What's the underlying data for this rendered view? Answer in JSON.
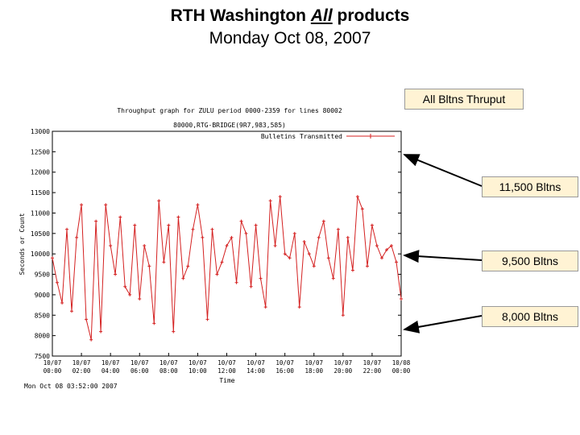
{
  "slide": {
    "title_prefix": "RTH Washington ",
    "title_emph": "All",
    "title_suffix": " products",
    "subtitle": "Monday Oct 08, 2007"
  },
  "callouts": {
    "header": "All Bltns Thruput",
    "labels": [
      "11,500 Bltns",
      "9,500 Bltns",
      "8,000 Bltns"
    ],
    "box_color": "#fff3d4"
  },
  "chart_data": {
    "type": "line",
    "title": "Throughput graph for ZULU period 0000-2359 for lines 80002",
    "subtitle": "80000,RTG-BRIDGE(9R7,983,585)",
    "xlabel": "Time",
    "ylabel": "Seconds or Count",
    "legend": "Bulletins Transmitted",
    "legend_position": "top-right",
    "footer": "Mon Oct 08 03:52:00 2007",
    "series_color": "#d42020",
    "ylim": [
      7500,
      13000
    ],
    "y_ticks": [
      "13000",
      "12500",
      "12000",
      "11500",
      "11000",
      "10500",
      "10000",
      "9500",
      "9000",
      "8500",
      "8000",
      "7500"
    ],
    "y_tick_values": [
      13000,
      12500,
      12000,
      11500,
      11000,
      10500,
      10000,
      9500,
      9000,
      8500,
      8000,
      7500
    ],
    "x_ticks": [
      [
        "10/07",
        "00:00"
      ],
      [
        "10/07",
        "02:00"
      ],
      [
        "10/07",
        "04:00"
      ],
      [
        "10/07",
        "06:00"
      ],
      [
        "10/07",
        "08:00"
      ],
      [
        "10/07",
        "10:00"
      ],
      [
        "10/07",
        "12:00"
      ],
      [
        "10/07",
        "14:00"
      ],
      [
        "10/07",
        "16:00"
      ],
      [
        "10/07",
        "18:00"
      ],
      [
        "10/07",
        "20:00"
      ],
      [
        "10/07",
        "22:00"
      ],
      [
        "10/08",
        "00:00"
      ]
    ],
    "x_hours": [
      0,
      0.33,
      0.67,
      1.0,
      1.33,
      1.67,
      2.0,
      2.33,
      2.67,
      3.0,
      3.33,
      3.67,
      4.0,
      4.33,
      4.67,
      5.0,
      5.33,
      5.67,
      6.0,
      6.33,
      6.67,
      7.0,
      7.33,
      7.67,
      8.0,
      8.33,
      8.67,
      9.0,
      9.33,
      9.67,
      10.0,
      10.33,
      10.67,
      11.0,
      11.33,
      11.67,
      12.0,
      12.33,
      12.67,
      13.0,
      13.33,
      13.67,
      14.0,
      14.33,
      14.67,
      15.0,
      15.33,
      15.67,
      16.0,
      16.33,
      16.67,
      17.0,
      17.33,
      17.67,
      18.0,
      18.33,
      18.67,
      19.0,
      19.33,
      19.67,
      20.0,
      20.33,
      20.67,
      21.0,
      21.33,
      21.67,
      22.0,
      22.33,
      22.67,
      23.0,
      23.33,
      23.67,
      24.0
    ],
    "y_values": [
      9900,
      9300,
      8800,
      10600,
      8600,
      10400,
      11200,
      8400,
      7900,
      10800,
      8100,
      11200,
      10200,
      9500,
      10900,
      9200,
      9000,
      10700,
      8900,
      10200,
      9700,
      8300,
      11300,
      9800,
      10700,
      8100,
      10900,
      9400,
      9700,
      10600,
      11200,
      10400,
      8400,
      10600,
      9500,
      9800,
      10200,
      10400,
      9300,
      10800,
      10500,
      9200,
      10700,
      9400,
      8700,
      11300,
      10200,
      11400,
      10000,
      9900,
      10500,
      8700,
      10300,
      10000,
      9700,
      10400,
      10800,
      9900,
      9400,
      10600,
      8500,
      10400,
      9600,
      11400,
      11100,
      9700,
      10700,
      10200,
      9900,
      10100,
      10200,
      9800,
      8900
    ]
  }
}
